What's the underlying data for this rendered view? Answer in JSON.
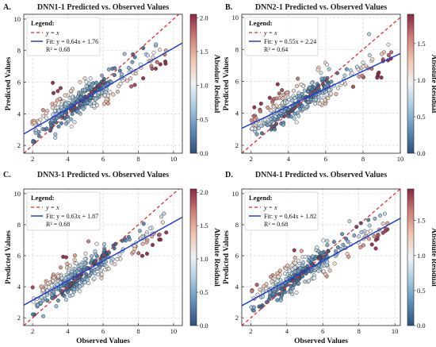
{
  "chart_data": [
    {
      "panel": "A.",
      "type": "scatter",
      "title": "DNN1-1 Predicted vs. Observed Values",
      "xlabel": "",
      "ylabel": "Predicted Values",
      "xlim": [
        1.5,
        10.5
      ],
      "ylim": [
        1.5,
        10.3
      ],
      "xticks": [
        2,
        4,
        6,
        8,
        10
      ],
      "yticks": [
        2,
        4,
        6,
        8,
        10
      ],
      "legend_title": "Legend:",
      "legend": [
        "y = x",
        "Fit: y = 0.64x + 1.76",
        "R² = 0.68"
      ],
      "fit": {
        "slope": 0.64,
        "intercept": 1.76,
        "r2": 0.68
      },
      "colorbar": {
        "label": "Absolute Residual",
        "ticks": [
          "0.0",
          "0.5",
          "1.0",
          "1.5",
          "2.0"
        ],
        "tickvals": [
          0,
          0.5,
          1,
          1.5,
          2
        ],
        "max": 2.05
      },
      "seed": 11,
      "n": 320,
      "noise": 0.85
    },
    {
      "panel": "B.",
      "type": "scatter",
      "title": "DNN2-1 Predicted vs. Observed Values",
      "xlabel": "",
      "ylabel": "Predicted Values",
      "xlim": [
        1.5,
        10.0
      ],
      "ylim": [
        1.5,
        10.2
      ],
      "xticks": [
        2,
        4,
        6,
        8,
        10
      ],
      "yticks": [
        2,
        4,
        6,
        8,
        10
      ],
      "legend_title": "Legend:",
      "legend": [
        "y = x",
        "Fit: y = 0.55x + 2.24",
        "R² = 0.64"
      ],
      "fit": {
        "slope": 0.55,
        "intercept": 2.24,
        "r2": 0.64
      },
      "colorbar": {
        "label": "Absolute Residual",
        "ticks": [
          "0.0",
          "0.5",
          "1.0",
          "1.5"
        ],
        "tickvals": [
          0,
          0.5,
          1,
          1.5
        ],
        "max": 1.9
      },
      "seed": 23,
      "n": 320,
      "noise": 0.8
    },
    {
      "panel": "C.",
      "type": "scatter",
      "title": "DNN3-1 Predicted vs. Observed Values",
      "xlabel": "Observed Values",
      "ylabel": "Predicted Values",
      "xlim": [
        1.5,
        10.5
      ],
      "ylim": [
        1.5,
        10.3
      ],
      "xticks": [
        2,
        4,
        6,
        8,
        10
      ],
      "yticks": [
        2,
        4,
        6,
        8,
        10
      ],
      "legend_title": "Legend:",
      "legend": [
        "y = x",
        "Fit: y = 0.63x + 1.87",
        "R² = 0.68"
      ],
      "fit": {
        "slope": 0.63,
        "intercept": 1.87,
        "r2": 0.68
      },
      "colorbar": {
        "label": "Absolute Residual",
        "ticks": [
          "0.0",
          "0.5",
          "1.0",
          "1.5",
          "2.0"
        ],
        "tickvals": [
          0,
          0.5,
          1,
          1.5,
          2
        ],
        "max": 2.05
      },
      "seed": 37,
      "n": 320,
      "noise": 0.85
    },
    {
      "panel": "D.",
      "type": "scatter",
      "title": "DNN4-1 Predicted vs. Observed Values",
      "xlabel": "Observed Values",
      "ylabel": "Predicted Values",
      "xlim": [
        1.5,
        10.3
      ],
      "ylim": [
        1.5,
        10.3
      ],
      "xticks": [
        2,
        4,
        6,
        8,
        10
      ],
      "yticks": [
        2,
        4,
        6,
        8,
        10
      ],
      "legend_title": "Legend:",
      "legend": [
        "y = x",
        "Fit: y = 0.64x + 1.82",
        "R² = 0.68"
      ],
      "fit": {
        "slope": 0.64,
        "intercept": 1.82,
        "r2": 0.68
      },
      "colorbar": {
        "label": "Absolute Residual",
        "ticks": [
          "0.0",
          "0.5",
          "1.0",
          "1.5"
        ],
        "tickvals": [
          0,
          0.5,
          1,
          1.5
        ],
        "max": 1.95
      },
      "seed": 51,
      "n": 320,
      "noise": 0.85
    }
  ],
  "colors": {
    "identity_line": "#e8282b",
    "fit_line": "#1f3fd6",
    "colormap": [
      "#2f4f7a",
      "#5f8db8",
      "#a9cbe0",
      "#eef2f4",
      "#f0c7b3",
      "#cf7f77",
      "#8a2742"
    ]
  }
}
